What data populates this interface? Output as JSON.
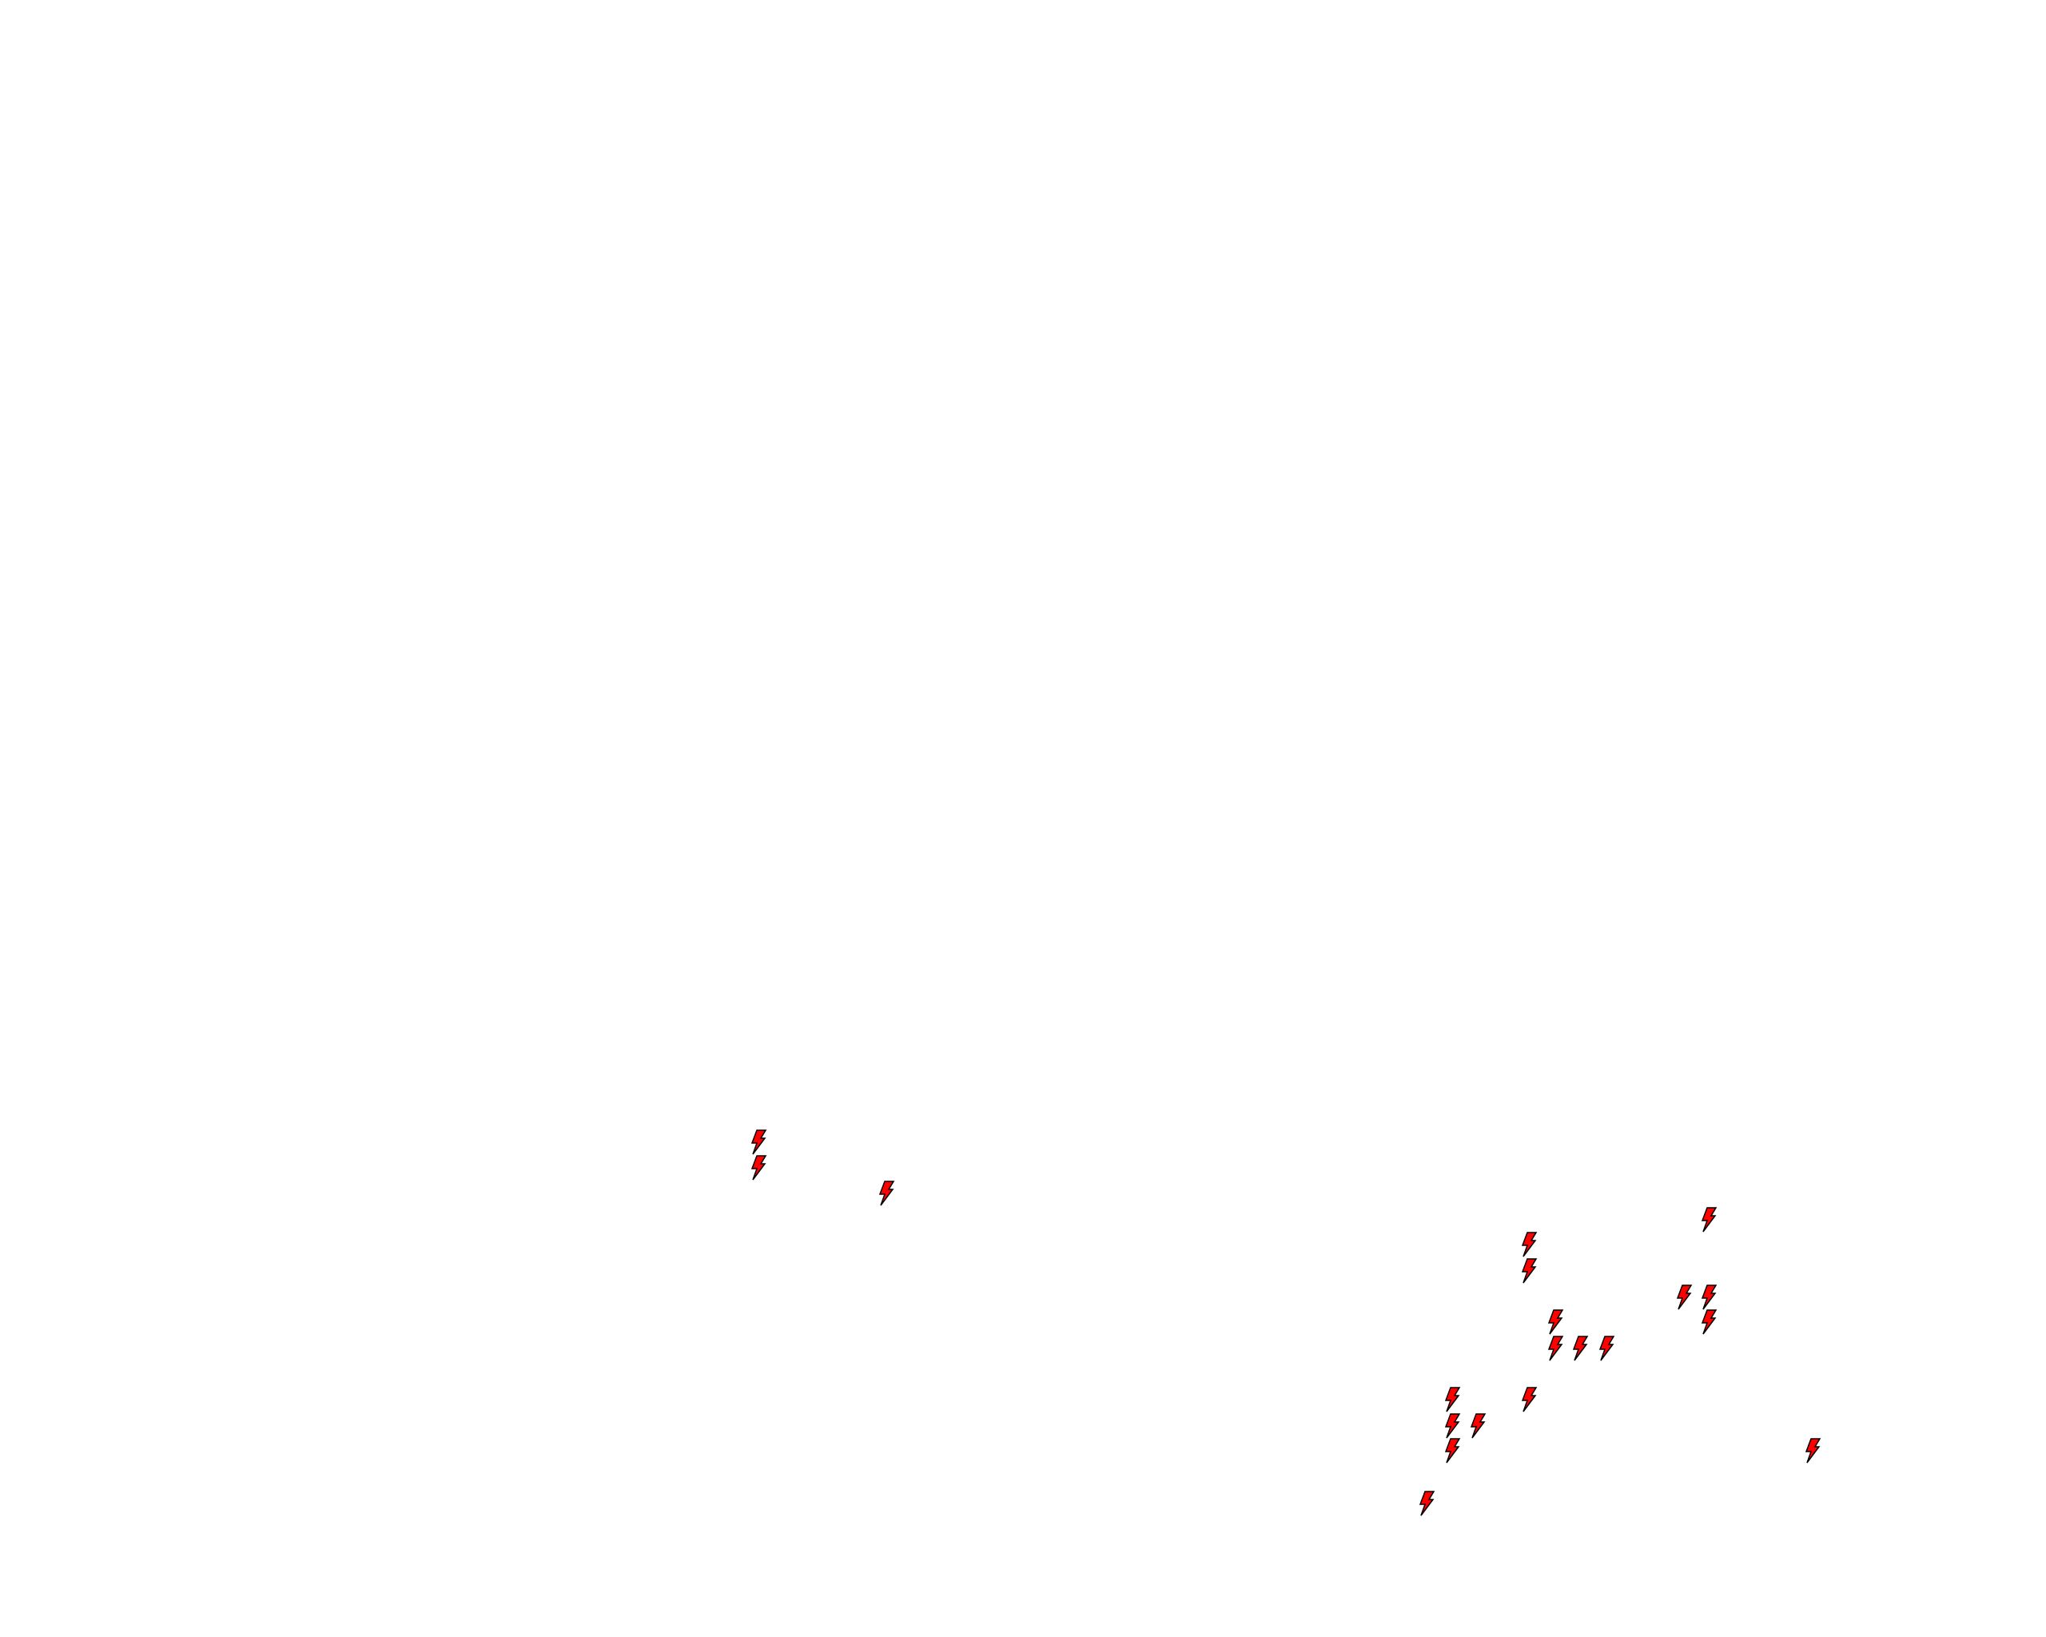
{
  "map": {
    "marker_icon": "lightning-bolt-icon",
    "marker_fill": "#ff0000",
    "marker_stroke": "#000000",
    "background": "#ffffff",
    "marker_count": 20
  }
}
